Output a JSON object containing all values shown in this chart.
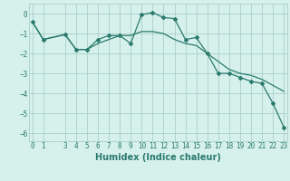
{
  "xlabel": "Humidex (Indice chaleur)",
  "ylabel": "",
  "bg_color": "#d6f0ec",
  "line_color": "#2a7a6e",
  "grid_color": "#aacfca",
  "line1_x": [
    0,
    1,
    3,
    4,
    5,
    6,
    7,
    8,
    9,
    10,
    11,
    12,
    13,
    14,
    15,
    16,
    17,
    18,
    19,
    20,
    21,
    22,
    23
  ],
  "line1_y": [
    -0.4,
    -1.3,
    -1.05,
    -1.8,
    -1.8,
    -1.3,
    -1.1,
    -1.1,
    -1.5,
    -0.05,
    0.05,
    -0.2,
    -0.25,
    -1.3,
    -1.2,
    -2.0,
    -3.0,
    -3.0,
    -3.2,
    -3.4,
    -3.5,
    -4.5,
    -5.7
  ],
  "line2_x": [
    0,
    1,
    3,
    4,
    5,
    6,
    7,
    8,
    9,
    10,
    11,
    12,
    13,
    14,
    15,
    16,
    17,
    18,
    19,
    20,
    21,
    22,
    23
  ],
  "line2_y": [
    -0.4,
    -1.3,
    -1.05,
    -1.8,
    -1.8,
    -1.5,
    -1.3,
    -1.1,
    -1.1,
    -0.9,
    -0.9,
    -1.0,
    -1.3,
    -1.5,
    -1.6,
    -2.0,
    -2.4,
    -2.8,
    -3.0,
    -3.1,
    -3.3,
    -3.6,
    -3.9
  ],
  "xticks": [
    0,
    1,
    3,
    4,
    5,
    6,
    7,
    8,
    9,
    10,
    11,
    12,
    13,
    14,
    15,
    16,
    17,
    18,
    19,
    20,
    21,
    22,
    23
  ],
  "yticks": [
    0,
    -1,
    -2,
    -3,
    -4,
    -5,
    -6
  ],
  "xlim": [
    -0.3,
    23.3
  ],
  "ylim": [
    -6.4,
    0.5
  ],
  "tick_fontsize": 5.5,
  "label_fontsize": 7
}
